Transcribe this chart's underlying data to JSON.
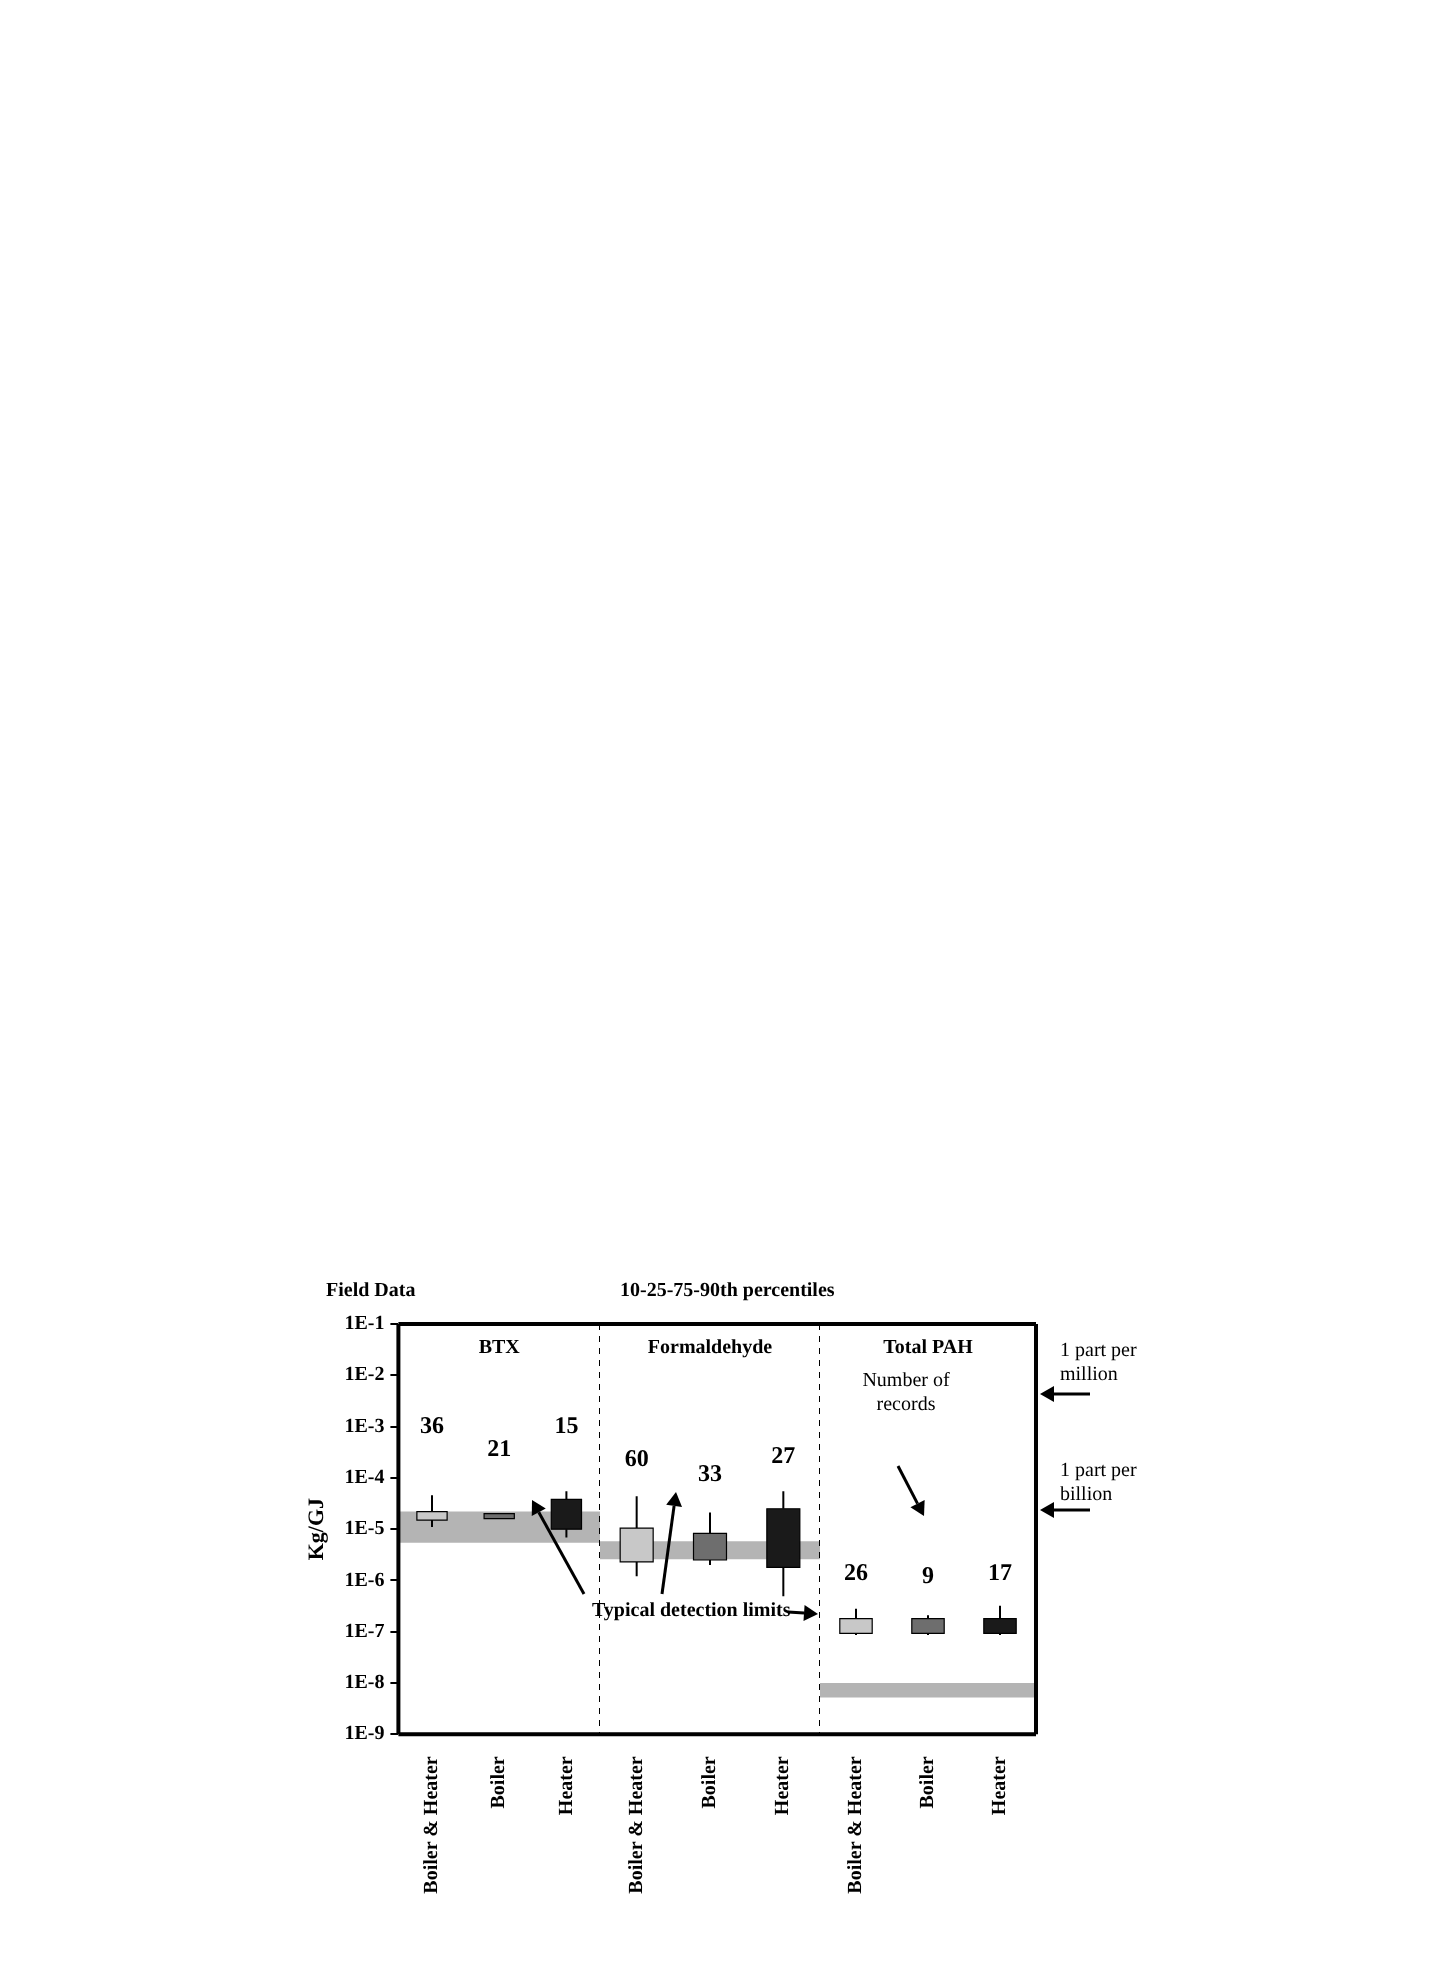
{
  "chart_data": [
    {
      "type": "box",
      "title": "BTX",
      "ylabel": "Kg/GJ",
      "log": "y",
      "grid": false,
      "legend": false,
      "categories": [
        "Boiler & Heater",
        "Boiler",
        "Heater"
      ],
      "colors": [
        "#c8c8c8",
        "#6e6e6e",
        "#1a1a1a"
      ],
      "boxes": [
        {
          "low": 1.1e-05,
          "q1": 1.5e-05,
          "q3": 2.2e-05,
          "high": 4.6e-05
        },
        {
          "low": 1.6e-05,
          "q1": 1.6e-05,
          "q3": 2e-05,
          "high": 2e-05
        },
        {
          "low": 6.9e-06,
          "q1": 1e-05,
          "q3": 3.8e-05,
          "high": 5.5e-05
        }
      ],
      "ylim": [
        1e-09,
        0.1
      ],
      "yticks": [
        {
          "value": 1e-09,
          "label": "1E-9"
        },
        {
          "value": 1e-08,
          "label": "1E-8"
        },
        {
          "value": 1e-07,
          "label": "1E-7"
        },
        {
          "value": 1e-06,
          "label": "1E-6"
        },
        {
          "value": 1e-05,
          "label": "1E-5"
        },
        {
          "value": 0.0001,
          "label": "1E-4"
        },
        {
          "value": 0.001,
          "label": "1E-3"
        },
        {
          "value": 0.01,
          "label": "1E-2"
        },
        {
          "value": 0.1,
          "label": "1E-1"
        }
      ],
      "bands": [
        {
          "axis": "y",
          "from": 5.4e-06,
          "to": 2.2e-05,
          "color": "#b4b4b4"
        }
      ],
      "annotations": [
        "36",
        "21",
        "15",
        "Field Data",
        "10-25-75-90th percentiles",
        "Typical detection limits",
        "1 part per million",
        "1 part per billion"
      ]
    },
    {
      "type": "box",
      "title": "Formaldehyde",
      "log": "y",
      "grid": false,
      "legend": false,
      "tick_labels": "x",
      "categories": [
        "Boiler & Heater",
        "Boiler",
        "Heater"
      ],
      "colors": [
        "#c8c8c8",
        "#6e6e6e",
        "#1a1a1a"
      ],
      "boxes": [
        {
          "low": 1.2e-06,
          "q1": 2.3e-06,
          "q3": 1.05e-05,
          "high": 4.4e-05
        },
        {
          "low": 2e-06,
          "q1": 2.5e-06,
          "q3": 8.3e-06,
          "high": 2.1e-05
        },
        {
          "low": 4.9e-07,
          "q1": 1.8e-06,
          "q3": 2.5e-05,
          "high": 5.5e-05
        }
      ],
      "ylim": [
        1e-09,
        0.1
      ],
      "bands": [
        {
          "axis": "y",
          "from": 2.6e-06,
          "to": 5.8e-06,
          "color": "#b4b4b4"
        }
      ],
      "annotations": [
        "60",
        "33",
        "27"
      ]
    },
    {
      "type": "box",
      "title": "Total PAH",
      "log": "y",
      "grid": false,
      "legend": false,
      "tick_labels": "x",
      "categories": [
        "Boiler & Heater",
        "Boiler",
        "Heater"
      ],
      "colors": [
        "#c8c8c8",
        "#6e6e6e",
        "#1a1a1a"
      ],
      "boxes": [
        {
          "low": 8.6e-08,
          "q1": 9.3e-08,
          "q3": 1.8e-07,
          "high": 2.8e-07
        },
        {
          "low": 8.6e-08,
          "q1": 9.3e-08,
          "q3": 1.8e-07,
          "high": 2.1e-07
        },
        {
          "low": 8.6e-08,
          "q1": 9.3e-08,
          "q3": 1.8e-07,
          "high": 3.2e-07
        }
      ],
      "ylim": [
        1e-09,
        0.1
      ],
      "bands": [
        {
          "axis": "y",
          "from": 5.2e-09,
          "to": 1e-08,
          "color": "#b4b4b4"
        }
      ],
      "annotations": [
        "26",
        "9",
        "17",
        "Number of records"
      ]
    }
  ]
}
